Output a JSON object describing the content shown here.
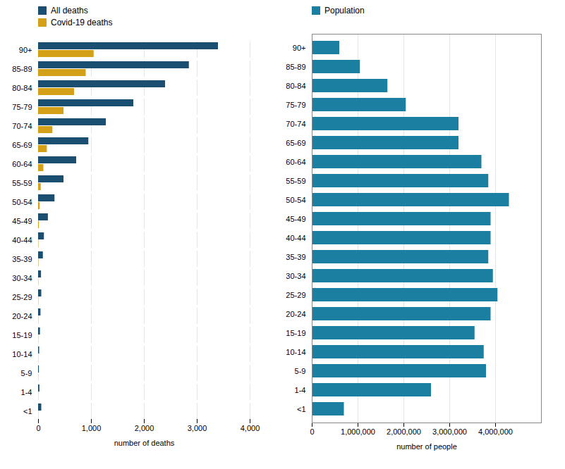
{
  "chart_data": [
    {
      "type": "bar",
      "orientation": "horizontal",
      "categories": [
        "90+",
        "85-89",
        "80-84",
        "75-79",
        "70-74",
        "65-69",
        "60-64",
        "55-59",
        "50-54",
        "45-49",
        "40-44",
        "35-39",
        "30-34",
        "25-29",
        "20-24",
        "15-19",
        "10-14",
        "5-9",
        "1-4",
        "<1"
      ],
      "series": [
        {
          "name": "All deaths",
          "color": "#1b4f72",
          "values": [
            3400,
            2850,
            2400,
            1800,
            1280,
            950,
            720,
            480,
            310,
            185,
            110,
            90,
            55,
            60,
            45,
            35,
            20,
            15,
            25,
            60
          ]
        },
        {
          "name": "Covid-19 deaths",
          "color": "#d4a017",
          "values": [
            1050,
            900,
            680,
            480,
            270,
            165,
            100,
            50,
            30,
            15,
            5,
            5,
            2,
            2,
            1,
            1,
            0,
            0,
            0,
            0
          ]
        }
      ],
      "xlabel": "number of deaths",
      "xlim": [
        0,
        4000
      ],
      "xticks": [
        0,
        {
          "value": 1000,
          "label": "1,000"
        },
        {
          "value": 2000,
          "label": "2,000"
        },
        {
          "value": 3000,
          "label": "3,000"
        },
        {
          "value": 4000,
          "label": "4,000"
        }
      ],
      "grid": true,
      "legend": "upper left"
    },
    {
      "type": "bar",
      "orientation": "horizontal",
      "categories": [
        "90+",
        "85-89",
        "80-84",
        "75-79",
        "70-74",
        "65-69",
        "60-64",
        "55-59",
        "50-54",
        "45-49",
        "40-44",
        "35-39",
        "30-34",
        "25-29",
        "20-24",
        "15-19",
        "10-14",
        "5-9",
        "1-4",
        "<1"
      ],
      "series": [
        {
          "name": "Population",
          "color": "#1a7fa0",
          "values": [
            600000,
            1050000,
            1650000,
            2050000,
            3200000,
            3200000,
            3700000,
            3850000,
            4300000,
            3900000,
            3900000,
            3850000,
            3950000,
            4050000,
            3900000,
            3550000,
            3750000,
            3800000,
            2600000,
            700000
          ]
        }
      ],
      "xlabel": "number of people",
      "xlim": [
        0,
        5000000
      ],
      "xticks": [
        0,
        {
          "value": 1000000,
          "label": "1,000,000"
        },
        {
          "value": 2000000,
          "label": "2,000,000"
        },
        {
          "value": 3000000,
          "label": "3,000,000"
        },
        {
          "value": 4000000,
          "label": "4,000,000"
        }
      ],
      "grid": true,
      "legend": "upper left"
    }
  ]
}
